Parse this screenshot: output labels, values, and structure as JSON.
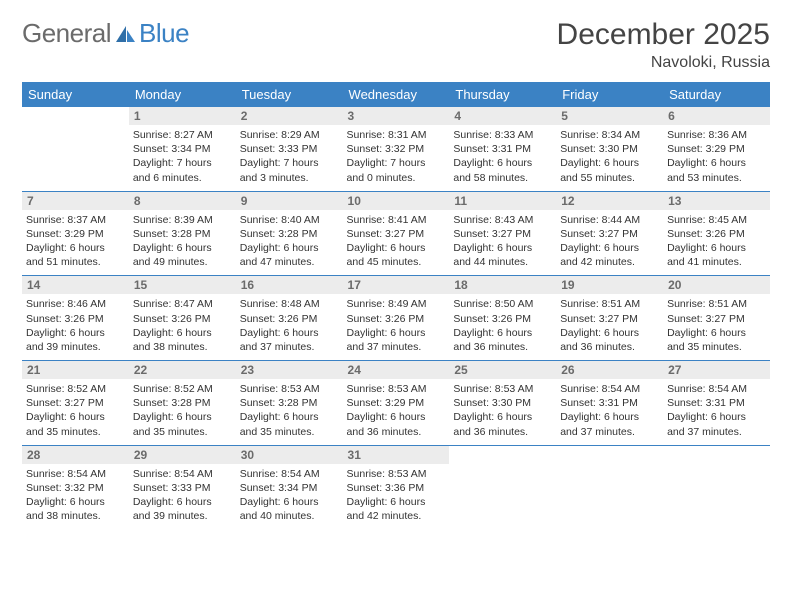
{
  "logo": {
    "part1": "General",
    "part2": "Blue"
  },
  "title": "December 2025",
  "location": "Navoloki, Russia",
  "colors": {
    "header_bg": "#3b82c4",
    "header_text": "#ffffff",
    "daynum_bg": "#ececec",
    "daynum_text": "#6b6b6b",
    "row_border": "#3b82c4",
    "page_bg": "#ffffff",
    "text": "#333333",
    "logo_gray": "#6b6b6b",
    "logo_blue": "#3b82c4"
  },
  "weekdays": [
    "Sunday",
    "Monday",
    "Tuesday",
    "Wednesday",
    "Thursday",
    "Friday",
    "Saturday"
  ],
  "weeks": [
    [
      null,
      {
        "n": "1",
        "sr": "8:27 AM",
        "ss": "3:34 PM",
        "dl": "7 hours and 6 minutes."
      },
      {
        "n": "2",
        "sr": "8:29 AM",
        "ss": "3:33 PM",
        "dl": "7 hours and 3 minutes."
      },
      {
        "n": "3",
        "sr": "8:31 AM",
        "ss": "3:32 PM",
        "dl": "7 hours and 0 minutes."
      },
      {
        "n": "4",
        "sr": "8:33 AM",
        "ss": "3:31 PM",
        "dl": "6 hours and 58 minutes."
      },
      {
        "n": "5",
        "sr": "8:34 AM",
        "ss": "3:30 PM",
        "dl": "6 hours and 55 minutes."
      },
      {
        "n": "6",
        "sr": "8:36 AM",
        "ss": "3:29 PM",
        "dl": "6 hours and 53 minutes."
      }
    ],
    [
      {
        "n": "7",
        "sr": "8:37 AM",
        "ss": "3:29 PM",
        "dl": "6 hours and 51 minutes."
      },
      {
        "n": "8",
        "sr": "8:39 AM",
        "ss": "3:28 PM",
        "dl": "6 hours and 49 minutes."
      },
      {
        "n": "9",
        "sr": "8:40 AM",
        "ss": "3:28 PM",
        "dl": "6 hours and 47 minutes."
      },
      {
        "n": "10",
        "sr": "8:41 AM",
        "ss": "3:27 PM",
        "dl": "6 hours and 45 minutes."
      },
      {
        "n": "11",
        "sr": "8:43 AM",
        "ss": "3:27 PM",
        "dl": "6 hours and 44 minutes."
      },
      {
        "n": "12",
        "sr": "8:44 AM",
        "ss": "3:27 PM",
        "dl": "6 hours and 42 minutes."
      },
      {
        "n": "13",
        "sr": "8:45 AM",
        "ss": "3:26 PM",
        "dl": "6 hours and 41 minutes."
      }
    ],
    [
      {
        "n": "14",
        "sr": "8:46 AM",
        "ss": "3:26 PM",
        "dl": "6 hours and 39 minutes."
      },
      {
        "n": "15",
        "sr": "8:47 AM",
        "ss": "3:26 PM",
        "dl": "6 hours and 38 minutes."
      },
      {
        "n": "16",
        "sr": "8:48 AM",
        "ss": "3:26 PM",
        "dl": "6 hours and 37 minutes."
      },
      {
        "n": "17",
        "sr": "8:49 AM",
        "ss": "3:26 PM",
        "dl": "6 hours and 37 minutes."
      },
      {
        "n": "18",
        "sr": "8:50 AM",
        "ss": "3:26 PM",
        "dl": "6 hours and 36 minutes."
      },
      {
        "n": "19",
        "sr": "8:51 AM",
        "ss": "3:27 PM",
        "dl": "6 hours and 36 minutes."
      },
      {
        "n": "20",
        "sr": "8:51 AM",
        "ss": "3:27 PM",
        "dl": "6 hours and 35 minutes."
      }
    ],
    [
      {
        "n": "21",
        "sr": "8:52 AM",
        "ss": "3:27 PM",
        "dl": "6 hours and 35 minutes."
      },
      {
        "n": "22",
        "sr": "8:52 AM",
        "ss": "3:28 PM",
        "dl": "6 hours and 35 minutes."
      },
      {
        "n": "23",
        "sr": "8:53 AM",
        "ss": "3:28 PM",
        "dl": "6 hours and 35 minutes."
      },
      {
        "n": "24",
        "sr": "8:53 AM",
        "ss": "3:29 PM",
        "dl": "6 hours and 36 minutes."
      },
      {
        "n": "25",
        "sr": "8:53 AM",
        "ss": "3:30 PM",
        "dl": "6 hours and 36 minutes."
      },
      {
        "n": "26",
        "sr": "8:54 AM",
        "ss": "3:31 PM",
        "dl": "6 hours and 37 minutes."
      },
      {
        "n": "27",
        "sr": "8:54 AM",
        "ss": "3:31 PM",
        "dl": "6 hours and 37 minutes."
      }
    ],
    [
      {
        "n": "28",
        "sr": "8:54 AM",
        "ss": "3:32 PM",
        "dl": "6 hours and 38 minutes."
      },
      {
        "n": "29",
        "sr": "8:54 AM",
        "ss": "3:33 PM",
        "dl": "6 hours and 39 minutes."
      },
      {
        "n": "30",
        "sr": "8:54 AM",
        "ss": "3:34 PM",
        "dl": "6 hours and 40 minutes."
      },
      {
        "n": "31",
        "sr": "8:53 AM",
        "ss": "3:36 PM",
        "dl": "6 hours and 42 minutes."
      },
      null,
      null,
      null
    ]
  ],
  "labels": {
    "sunrise": "Sunrise:",
    "sunset": "Sunset:",
    "daylight": "Daylight:"
  }
}
